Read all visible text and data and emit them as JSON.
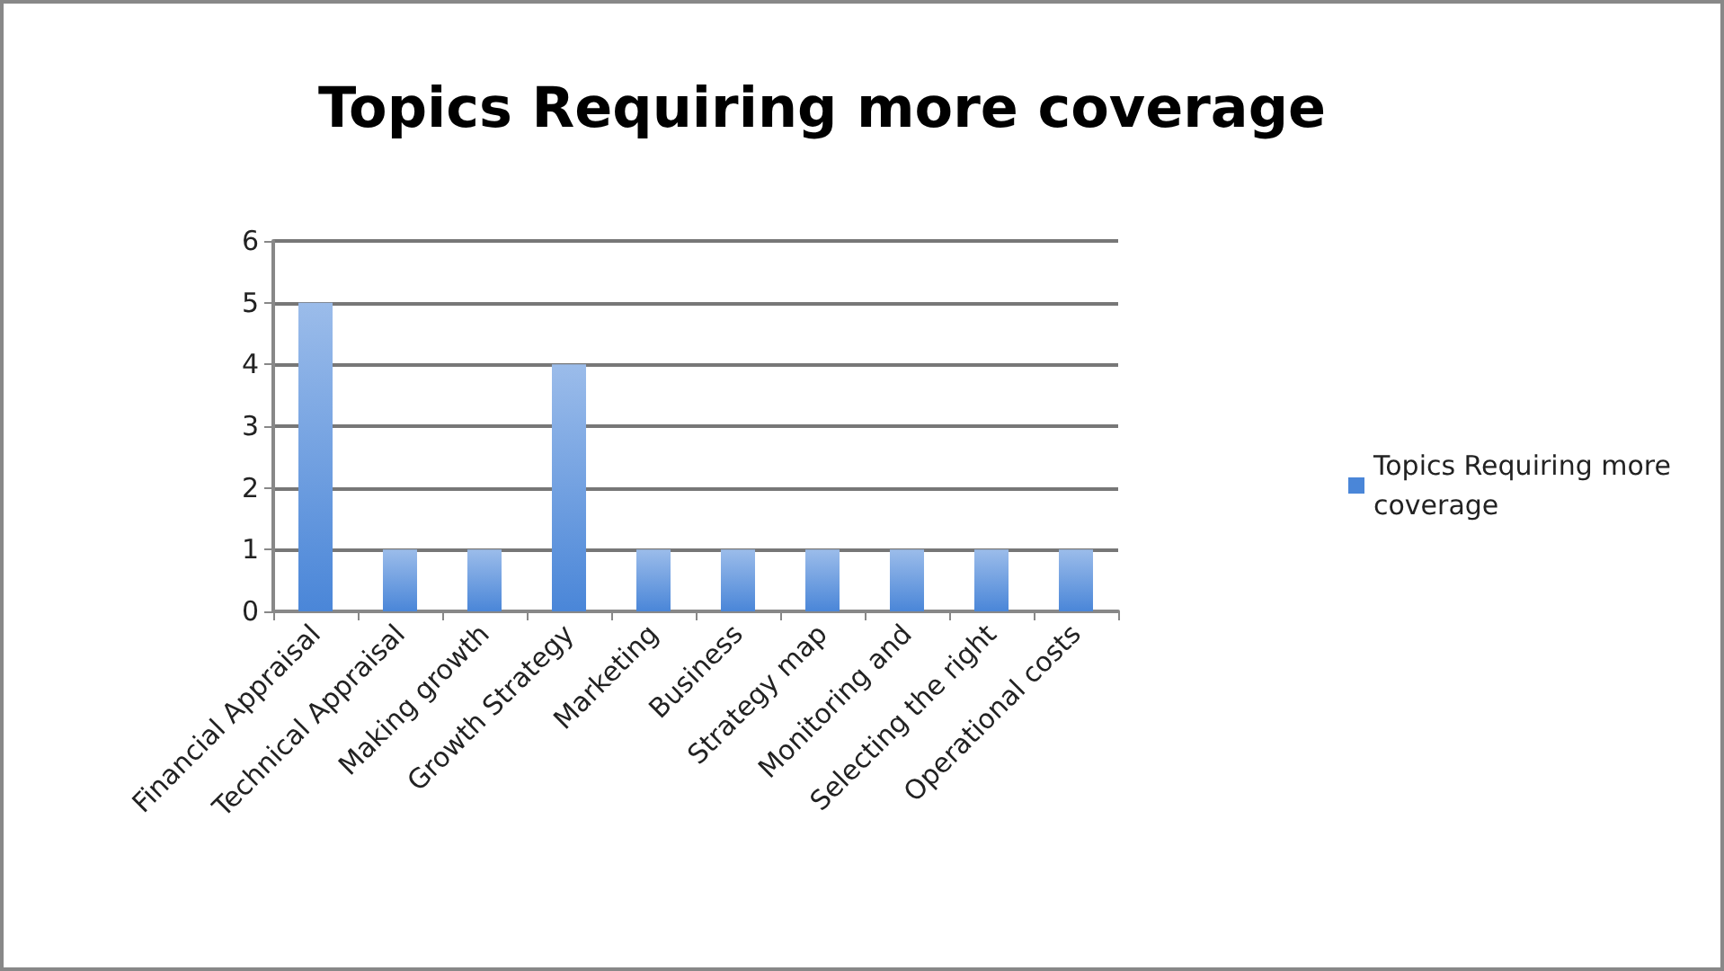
{
  "chart_data": {
    "type": "bar",
    "title": "Topics Requiring more coverage",
    "categories": [
      "Financial Appraisal",
      "Technical Appraisal",
      "Making growth",
      "Growth Strategy",
      "Marketing",
      "Business",
      "Strategy map",
      "Monitoring and",
      "Selecting the right",
      "Operational costs"
    ],
    "series": [
      {
        "name": "Topics Requiring more coverage",
        "color": "#4a86d8",
        "values": [
          5,
          1,
          1,
          4,
          1,
          1,
          1,
          1,
          1,
          1
        ]
      }
    ],
    "ylim": [
      0,
      6
    ],
    "yticks": [
      0,
      1,
      2,
      3,
      4,
      5,
      6
    ],
    "grid": "y",
    "legend": "right"
  }
}
